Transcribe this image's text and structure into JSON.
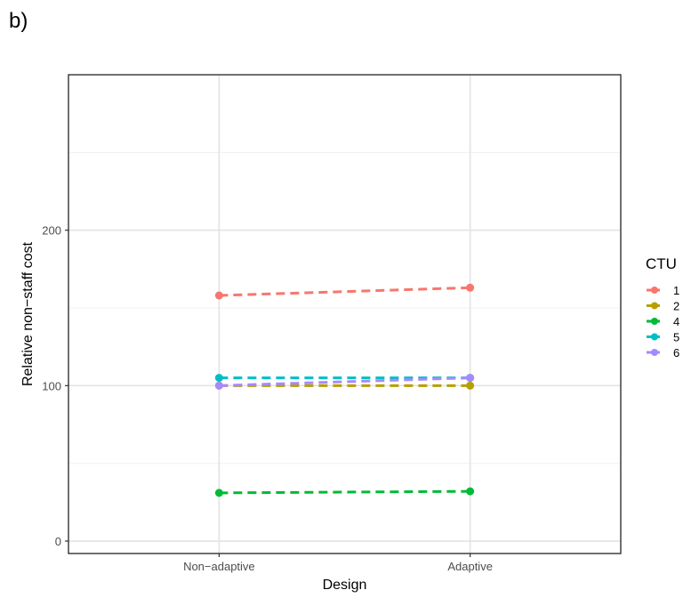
{
  "panel_label": "b)",
  "chart_data": {
    "type": "line",
    "categories": [
      "Non−adaptive",
      "Adaptive"
    ],
    "xlabel": "Design",
    "ylabel": "Relative non−staff cost",
    "ylim": [
      -8,
      300
    ],
    "yticks": [
      0,
      100,
      200
    ],
    "ytick_labels": [
      "0",
      "100",
      "200"
    ],
    "grid": true,
    "line_style": "dashed",
    "legend": {
      "title": "CTU",
      "placement": "right"
    },
    "series": [
      {
        "name": "1",
        "color": "#F8766D",
        "values": [
          158,
          163
        ]
      },
      {
        "name": "2",
        "color": "#B79F00",
        "values": [
          100,
          100
        ]
      },
      {
        "name": "4",
        "color": "#00BA38",
        "values": [
          31,
          32
        ]
      },
      {
        "name": "5",
        "color": "#00BFC4",
        "values": [
          105,
          105
        ]
      },
      {
        "name": "6",
        "color": "#A58AFF",
        "values": [
          100,
          105
        ]
      }
    ]
  }
}
